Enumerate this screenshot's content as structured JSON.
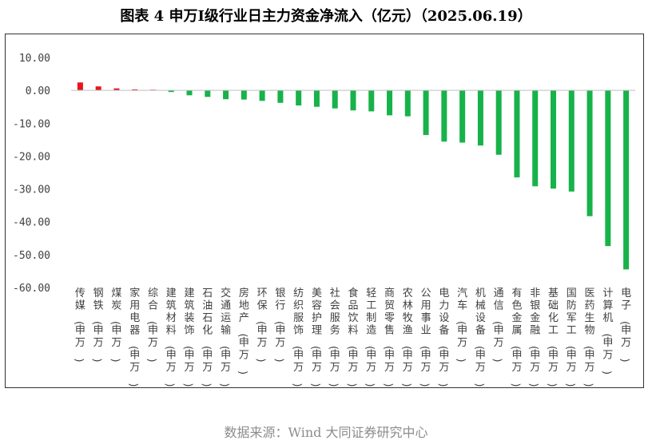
{
  "title": "图表 4  申万I级行业日主力资金净流入（亿元）（2025.06.19）",
  "source": "数据来源：Wind 大同证券研究中心",
  "colors": {
    "positive": "#e8141c",
    "negative": "#17b24a",
    "axis": "#bfbfbf",
    "text": "#404040"
  },
  "chart_data": {
    "type": "bar",
    "title": "图表 4  申万I级行业日主力资金净流入（亿元）（2025.06.19）",
    "xlabel": "",
    "ylabel": "",
    "ylim": [
      -60,
      10
    ],
    "yticks": [
      10,
      0,
      -10,
      -20,
      -30,
      -40,
      -50,
      -60
    ],
    "ytick_labels": [
      "10.00",
      "0.00",
      "-10.00",
      "-20.00",
      "-30.00",
      "-40.00",
      "-50.00",
      "-60.00"
    ],
    "grid": false,
    "legend": "none",
    "categories": [
      "传媒(申万)",
      "钢铁(申万)",
      "煤炭(申万)",
      "家用电器(申万)",
      "综合(申万)",
      "建筑材料(申万)",
      "建筑装饰(申万)",
      "石油石化(申万)",
      "交通运输(申万)",
      "房地产(申万)",
      "环保(申万)",
      "银行(申万)",
      "纺织服饰(申万)",
      "美容护理(申万)",
      "社会服务(申万)",
      "食品饮料(申万)",
      "轻工制造(申万)",
      "商贸零售(申万)",
      "农林牧渔(申万)",
      "公用事业(申万)",
      "电力设备(申万)",
      "汽车(申万)",
      "机械设备(申万)",
      "通信(申万)",
      "有色金属(申万)",
      "非银金融(申万)",
      "基础化工(申万)",
      "国防军工(申万)",
      "医药生物(申万)",
      "计算机(申万)",
      "电子(申万)"
    ],
    "values": [
      2.4,
      1.2,
      0.6,
      0.3,
      0.2,
      -0.5,
      -1.5,
      -2.0,
      -2.7,
      -2.8,
      -3.2,
      -3.8,
      -4.6,
      -5.0,
      -5.5,
      -6.1,
      -6.4,
      -7.6,
      -7.9,
      -13.6,
      -15.6,
      -15.9,
      -16.8,
      -19.6,
      -26.5,
      -29.2,
      -29.9,
      -30.8,
      -38.3,
      -47.4,
      -54.5
    ]
  }
}
